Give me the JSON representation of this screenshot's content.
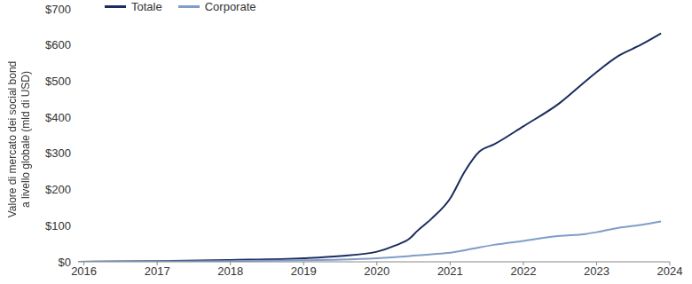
{
  "chart_data": {
    "type": "line",
    "ylabel": [
      "Valore di mercato dei social bond",
      "a livello globale (mld di USD)"
    ],
    "x": [
      2015.92,
      2017,
      2018,
      2019,
      2019.5,
      2020,
      2020.25,
      2020.45,
      2020.55,
      2020.75,
      2021,
      2021.2,
      2021.4,
      2021.6,
      2022,
      2022.5,
      2022.85,
      2023,
      2023.3,
      2023.6,
      2023.88
    ],
    "series": [
      {
        "name": "Totale",
        "color": "#1b2d5e",
        "values": [
          0,
          2,
          5,
          10,
          16,
          28,
          45,
          65,
          85,
          120,
          175,
          250,
          305,
          325,
          375,
          440,
          500,
          525,
          570,
          600,
          632
        ]
      },
      {
        "name": "Corporate",
        "color": "#7f9dc9",
        "values": [
          0,
          1,
          2,
          4,
          6,
          10,
          13,
          16,
          18,
          21,
          25,
          32,
          40,
          47,
          58,
          72,
          77,
          82,
          94,
          102,
          112
        ]
      }
    ],
    "xlim": [
      2015.92,
      2024
    ],
    "xticks": [
      2016,
      2017,
      2018,
      2019,
      2020,
      2021,
      2022,
      2023,
      2024
    ],
    "ylim": [
      0,
      700
    ],
    "yticks": [
      {
        "value": 0,
        "label": "$0"
      },
      {
        "value": 100,
        "label": "$100"
      },
      {
        "value": 200,
        "label": "$200"
      },
      {
        "value": 300,
        "label": "$300"
      },
      {
        "value": 400,
        "label": "$400"
      },
      {
        "value": 500,
        "label": "$500"
      },
      {
        "value": 600,
        "label": "$600"
      },
      {
        "value": 700,
        "label": "$700"
      }
    ],
    "grid": false,
    "legend": "top-left"
  }
}
